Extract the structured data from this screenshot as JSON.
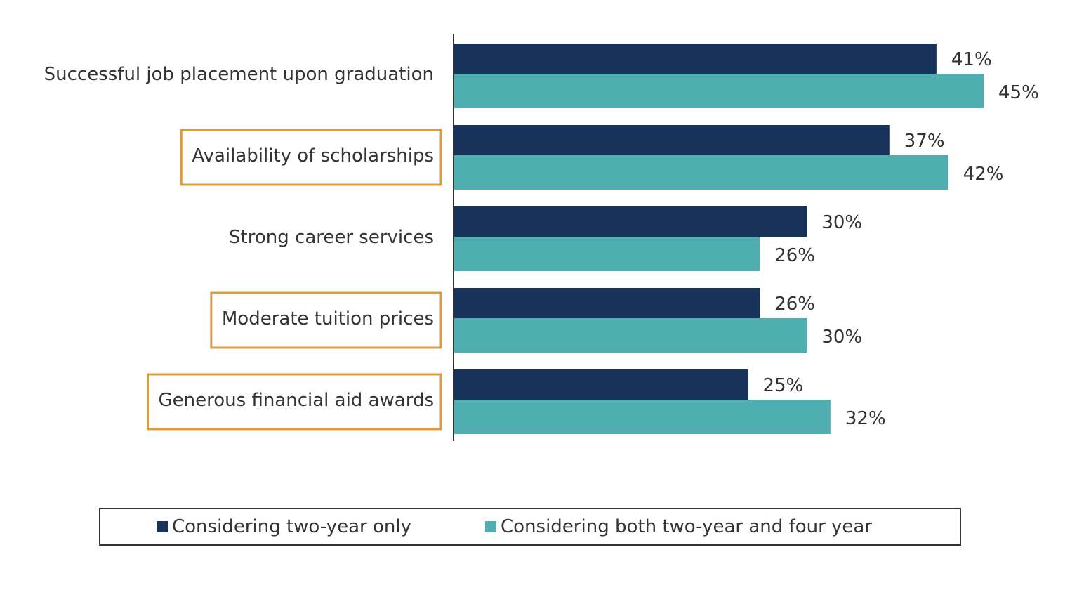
{
  "chart_data": {
    "type": "bar",
    "orientation": "horizontal",
    "categories": [
      "Successful job placement upon graduation",
      "Availability of scholarships",
      "Strong career services",
      "Moderate tuition prices",
      "Generous financial aid awards"
    ],
    "highlighted_categories": [
      "Availability of scholarships",
      "Moderate tuition prices",
      "Generous financial aid awards"
    ],
    "series": [
      {
        "name": "Considering two-year only",
        "color": "#17335c",
        "values": [
          41,
          37,
          30,
          26,
          25
        ],
        "labels": [
          "41%",
          "37%",
          "30%",
          "26%",
          "25%"
        ]
      },
      {
        "name": "Considering both two-year and four year",
        "color": "#4faeb0",
        "values": [
          45,
          42,
          26,
          30,
          32
        ],
        "labels": [
          "45%",
          "42%",
          "26%",
          "30%",
          "32%"
        ]
      }
    ],
    "xlim": [
      0,
      45
    ],
    "value_suffix": "%",
    "grid": false,
    "legend_position": "bottom",
    "highlight_color": "#e09a3c"
  }
}
